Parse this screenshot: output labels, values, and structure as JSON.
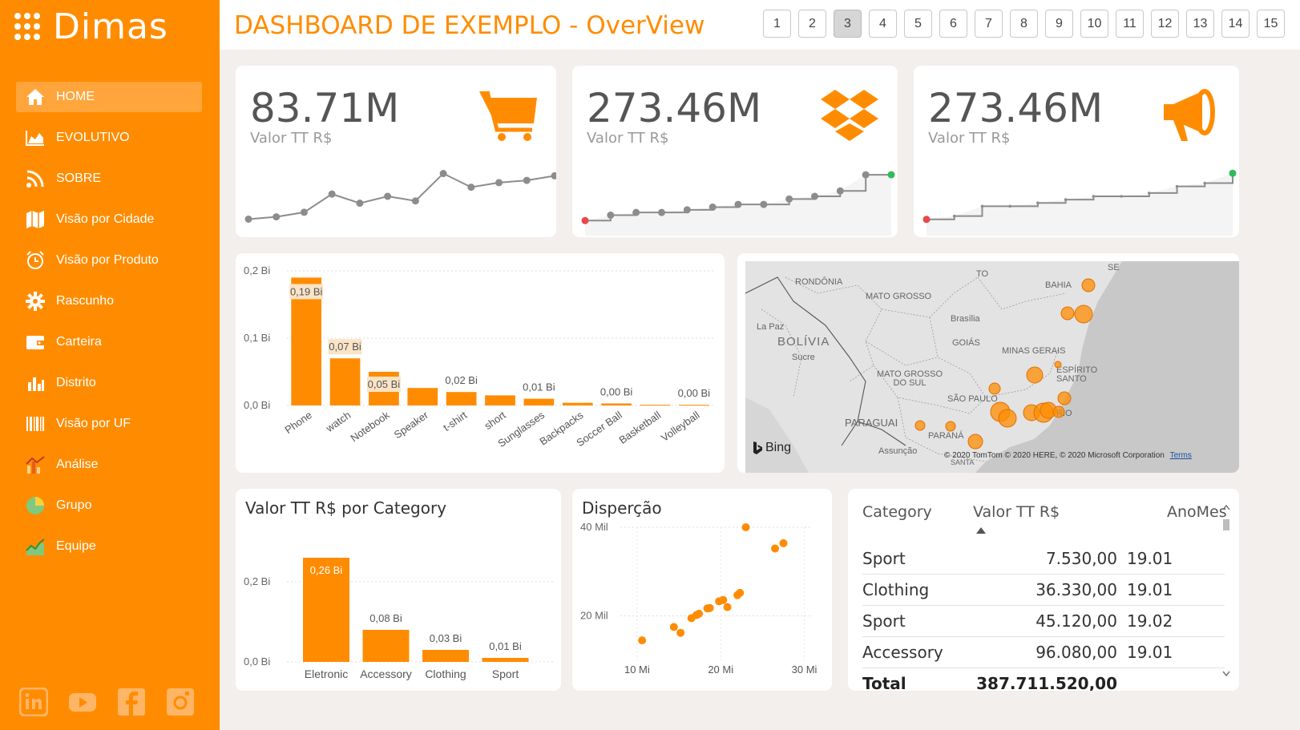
{
  "brand": {
    "name": "Dimas"
  },
  "header": {
    "title": "DASHBOARD DE EXEMPLO - OverView",
    "pages": [
      "1",
      "2",
      "3",
      "4",
      "5",
      "6",
      "7",
      "8",
      "9",
      "10",
      "11",
      "12",
      "13",
      "14",
      "15"
    ],
    "active_page": "3"
  },
  "sidebar": {
    "items": [
      {
        "label": "HOME",
        "icon": "home-icon",
        "active": true
      },
      {
        "label": "EVOLUTIVO",
        "icon": "area-chart-icon"
      },
      {
        "label": "SOBRE",
        "icon": "rss-icon"
      },
      {
        "label": "Visão por Cidade",
        "icon": "map-icon"
      },
      {
        "label": "Visão por Produto",
        "icon": "alarm-clock-icon"
      },
      {
        "label": "Rascunho",
        "icon": "gear-icon"
      },
      {
        "label": "Carteira",
        "icon": "wallet-icon"
      },
      {
        "label": "Distrito",
        "icon": "bar-chart-icon"
      },
      {
        "label": "Visão por UF",
        "icon": "barcode-icon"
      },
      {
        "label": "Análise",
        "icon": "chart-analysis-icon"
      },
      {
        "label": "Grupo",
        "icon": "pie-chart-icon"
      },
      {
        "label": "Equipe",
        "icon": "area-growth-icon"
      }
    ],
    "social": [
      "linkedin-icon",
      "youtube-icon",
      "facebook-icon",
      "instagram-icon"
    ]
  },
  "kpis": [
    {
      "value": "83.71M",
      "label": "Valor TT R$",
      "icon": "cart-icon"
    },
    {
      "value": "273.46M",
      "label": "Valor TT R$",
      "icon": "dropbox-icon"
    },
    {
      "value": "273.46M",
      "label": "Valor TT R$",
      "icon": "megaphone-icon"
    }
  ],
  "map": {
    "labels": [
      "RONDÔNIA",
      "MATO GROSSO",
      "TO",
      "BAHIA",
      "SE",
      "La Paz",
      "BOLÍVIA",
      "Sucre",
      "Brasília",
      "GOIÁS",
      "MINAS GERAIS",
      "ESPÍRITO SANTO",
      "MATO GROSSO DO SUL",
      "SÃO PAULO",
      "PARAGUAI",
      "PARANÁ",
      "Assunção",
      "RIO",
      "SANTA"
    ],
    "bing": "Bing",
    "copyright": "© 2020 TomTom © 2020 HERE, © 2020 Microsoft Corporation",
    "terms": "Terms",
    "bubble_color": "#ff8c00"
  },
  "table": {
    "headers": [
      "Category",
      "Valor TT R$",
      "AnoMes"
    ],
    "rows": [
      [
        "Sport",
        "7.530,00",
        "19.01"
      ],
      [
        "Clothing",
        "36.330,00",
        "19.01"
      ],
      [
        "Sport",
        "45.120,00",
        "19.02"
      ],
      [
        "Accessory",
        "96.080,00",
        "19.01"
      ]
    ],
    "total_label": "Total",
    "total_value": "387.711.520,00"
  },
  "chart_data": [
    {
      "type": "line",
      "id": "spark1",
      "values": [
        11,
        12,
        14,
        22,
        18,
        21,
        19,
        31,
        25,
        27,
        28,
        30
      ],
      "ylim": [
        8,
        34
      ],
      "color": "#8c8c8c"
    },
    {
      "type": "line",
      "id": "spark2",
      "values": [
        10,
        12,
        13,
        13,
        14,
        15,
        16,
        16,
        18,
        19,
        21,
        27,
        27
      ],
      "ylim": [
        8,
        30
      ],
      "color": "#8c8c8c",
      "first_point_color": "#e8484c",
      "last_point_color": "#2ebd59"
    },
    {
      "type": "line",
      "id": "spark3",
      "values": [
        10,
        11,
        14,
        14,
        15,
        16,
        17,
        17,
        18,
        20,
        21,
        24
      ],
      "ylim": [
        8,
        26
      ],
      "color": "#8c8c8c",
      "first_point_color": "#e8484c",
      "last_point_color": "#2ebd59"
    },
    {
      "type": "bar",
      "id": "products",
      "categories": [
        "Phone",
        "watch",
        "Notebook",
        "Speaker",
        "t-shirt",
        "short",
        "Sunglasses",
        "Backpacks",
        "Soccer Ball",
        "Basketball",
        "Volleyball"
      ],
      "values": [
        0.19,
        0.07,
        0.05,
        0.026,
        0.02,
        0.015,
        0.01,
        0.004,
        0.003,
        0.001,
        0.001
      ],
      "data_labels": [
        "0,19 Bi",
        "0,07 Bi",
        "0,05 Bi",
        "",
        "0,02 Bi",
        "",
        "0,01 Bi",
        "",
        "0,00 Bi",
        "",
        "0,00 Bi"
      ],
      "yticks": [
        "0,0 Bi",
        "0,1 Bi",
        "0,2 Bi"
      ],
      "ylim": [
        0,
        0.2
      ],
      "color": "#ff8c00"
    },
    {
      "type": "bar",
      "id": "category",
      "title": "Valor TT R$ por Category",
      "categories": [
        "Eletronic",
        "Accessory",
        "Clothing",
        "Sport"
      ],
      "values": [
        0.26,
        0.08,
        0.03,
        0.01
      ],
      "data_labels": [
        "0,26 Bi",
        "0,08 Bi",
        "0,03 Bi",
        "0,01 Bi"
      ],
      "yticks": [
        "0,0 Bi",
        "0,2 Bi"
      ],
      "ylim": [
        0,
        0.3
      ],
      "color": "#ff8c00"
    },
    {
      "type": "scatter",
      "id": "dispersao",
      "title": "Disperção",
      "points": [
        [
          10.6,
          14.5
        ],
        [
          14.4,
          17.5
        ],
        [
          15.2,
          16.2
        ],
        [
          16.5,
          19.5
        ],
        [
          17.1,
          20.2
        ],
        [
          17.4,
          20.5
        ],
        [
          18.4,
          21.7
        ],
        [
          18.7,
          21.8
        ],
        [
          19.8,
          23.3
        ],
        [
          20.3,
          23.6
        ],
        [
          20.8,
          22
        ],
        [
          22,
          24.7
        ],
        [
          22.3,
          25.2
        ],
        [
          23,
          40
        ],
        [
          26.5,
          35.2
        ],
        [
          27.5,
          36.4
        ]
      ],
      "xticks": [
        "10 Mi",
        "20 Mi",
        "30 Mi"
      ],
      "yticks": [
        "20 Mil",
        "40 Mil"
      ],
      "xlim": [
        8,
        31
      ],
      "ylim": [
        10,
        40
      ],
      "color": "#ff8c00"
    }
  ]
}
